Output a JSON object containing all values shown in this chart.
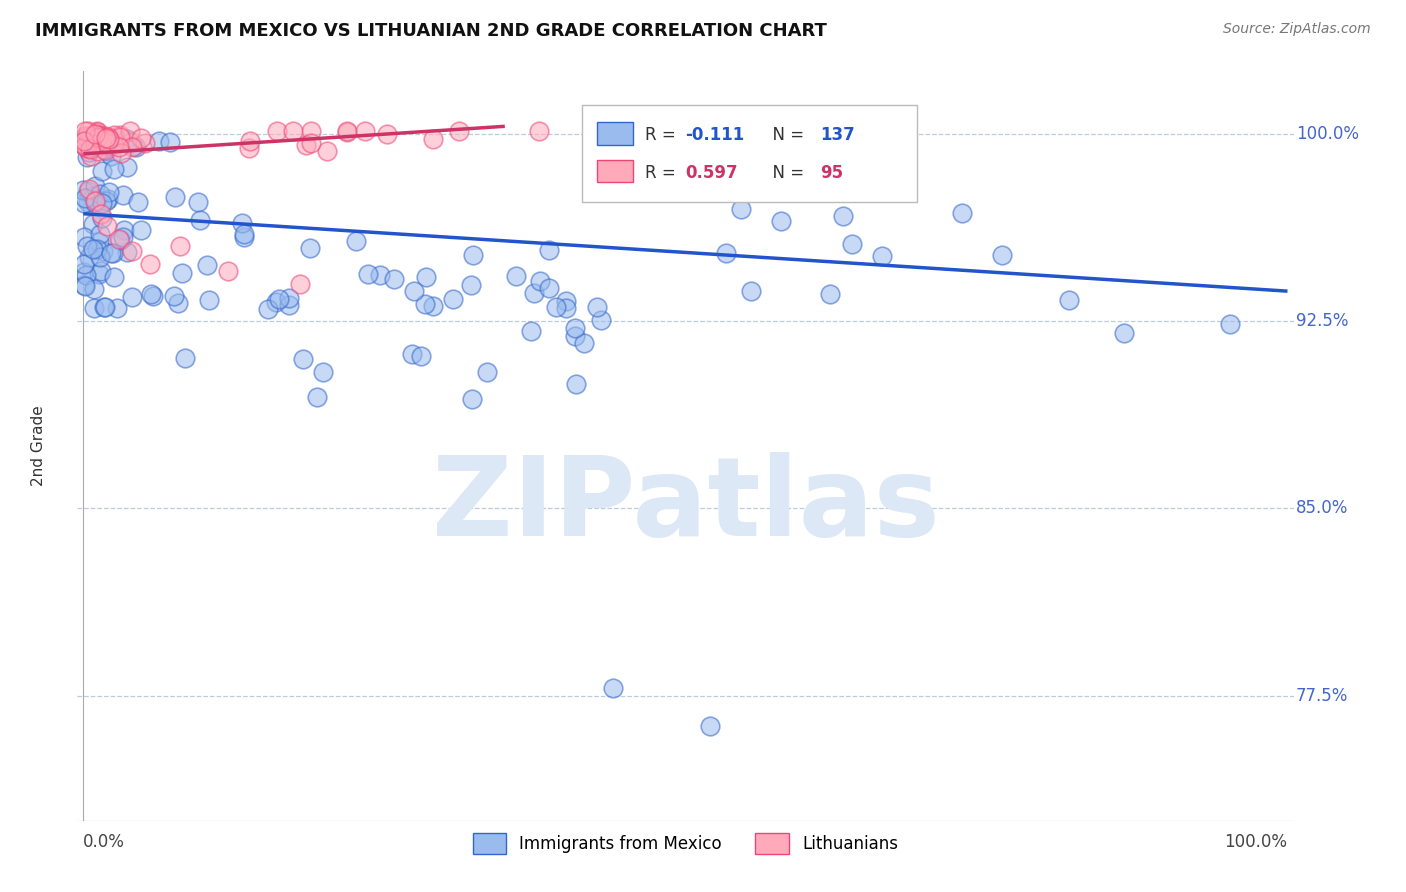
{
  "title": "IMMIGRANTS FROM MEXICO VS LITHUANIAN 2ND GRADE CORRELATION CHART",
  "source": "Source: ZipAtlas.com",
  "ylabel": "2nd Grade",
  "watermark": "ZIPatlas",
  "legend_r_mexico": "-0.111",
  "legend_n_mexico": "137",
  "legend_r_lith": "0.597",
  "legend_n_lith": "95",
  "blue_fill": "#99BBEE",
  "blue_edge": "#3366CC",
  "pink_fill": "#FFAABB",
  "pink_edge": "#EE4477",
  "trendline_blue": "#2255CC",
  "trendline_pink": "#CC3366",
  "ytick_vals": [
    1.0,
    0.925,
    0.85,
    0.775
  ],
  "ytick_labels": [
    "100.0%",
    "92.5%",
    "85.0%",
    "77.5%"
  ],
  "ylim_low": 0.725,
  "ylim_high": 1.025,
  "xlim_low": -0.005,
  "xlim_high": 1.005,
  "blue_trend_x": [
    0.0,
    1.0
  ],
  "blue_trend_y": [
    0.968,
    0.937
  ],
  "pink_trend_x": [
    0.0,
    0.35
  ],
  "pink_trend_y": [
    0.992,
    1.003
  ]
}
